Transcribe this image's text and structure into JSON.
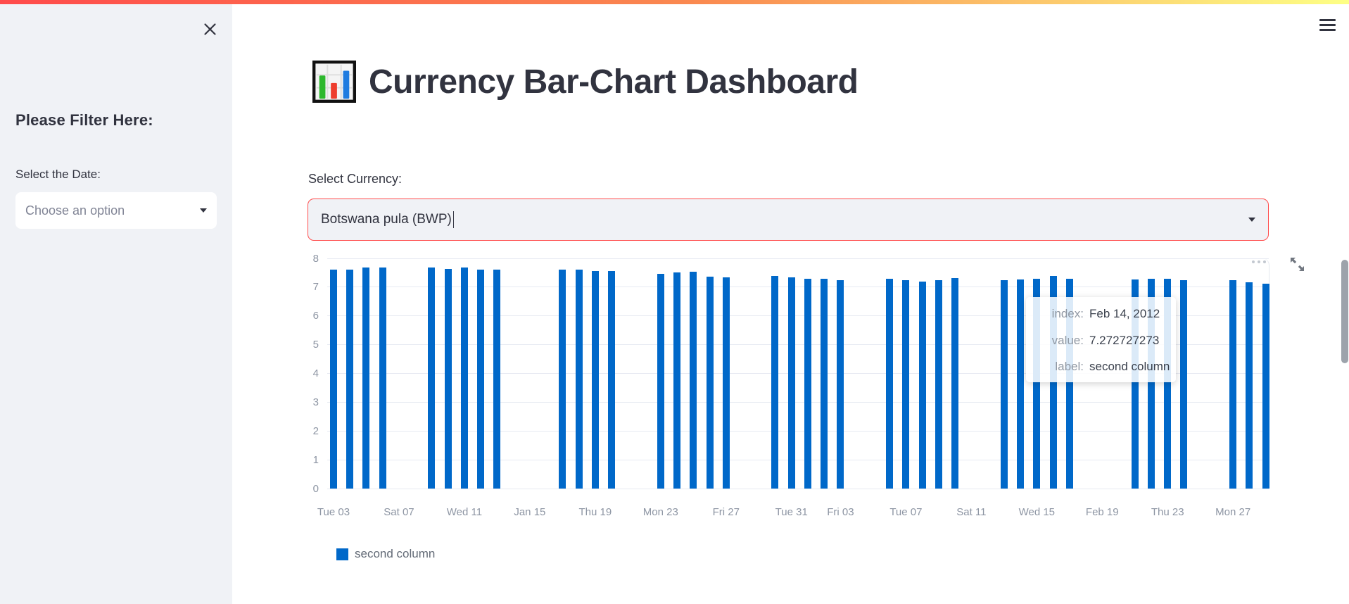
{
  "sidebar": {
    "heading": "Please Filter Here:",
    "date_label": "Select the Date:",
    "date_select_placeholder": "Choose an option"
  },
  "header": {
    "title": "Currency Bar-Chart Dashboard"
  },
  "main": {
    "currency_label": "Select Currency:",
    "currency_value": "Botswana pula (BWP)"
  },
  "tooltip": {
    "rows": [
      {
        "key": "index:",
        "value": "Feb 14, 2012"
      },
      {
        "key": "value:",
        "value": "7.272727273"
      },
      {
        "key": "label:",
        "value": "second column"
      }
    ]
  },
  "chart_data": {
    "type": "bar",
    "title": "",
    "xlabel": "",
    "ylabel": "",
    "series_name": "second column",
    "legend": [
      "second column"
    ],
    "legend_position": "bottom-left",
    "grid": true,
    "ylim": [
      0,
      8
    ],
    "y_ticks": [
      0,
      1,
      2,
      3,
      4,
      5,
      6,
      7,
      8
    ],
    "bar_color": "#0068c9",
    "x_ticks": [
      {
        "d": 0,
        "label": "Tue 03"
      },
      {
        "d": 4,
        "label": "Sat 07"
      },
      {
        "d": 8,
        "label": "Wed 11"
      },
      {
        "d": 12,
        "label": "Jan 15"
      },
      {
        "d": 16,
        "label": "Thu 19"
      },
      {
        "d": 20,
        "label": "Mon 23"
      },
      {
        "d": 24,
        "label": "Fri 27"
      },
      {
        "d": 28,
        "label": "Tue 31"
      },
      {
        "d": 31,
        "label": "Fri 03"
      },
      {
        "d": 35,
        "label": "Tue 07"
      },
      {
        "d": 39,
        "label": "Sat 11"
      },
      {
        "d": 43,
        "label": "Wed 15"
      },
      {
        "d": 47,
        "label": "Feb 19"
      },
      {
        "d": 51,
        "label": "Thu 23"
      },
      {
        "d": 55,
        "label": "Mon 27"
      }
    ],
    "bars": [
      {
        "date": "Jan 03, 2012",
        "d": 0,
        "value": 7.62
      },
      {
        "date": "Jan 04, 2012",
        "d": 1,
        "value": 7.62
      },
      {
        "date": "Jan 05, 2012",
        "d": 2,
        "value": 7.68
      },
      {
        "date": "Jan 06, 2012",
        "d": 3,
        "value": 7.68
      },
      {
        "date": "Jan 09, 2012",
        "d": 6,
        "value": 7.68
      },
      {
        "date": "Jan 10, 2012",
        "d": 7,
        "value": 7.63
      },
      {
        "date": "Jan 11, 2012",
        "d": 8,
        "value": 7.68
      },
      {
        "date": "Jan 12, 2012",
        "d": 9,
        "value": 7.6
      },
      {
        "date": "Jan 13, 2012",
        "d": 10,
        "value": 7.6
      },
      {
        "date": "Jan 17, 2012",
        "d": 14,
        "value": 7.6
      },
      {
        "date": "Jan 18, 2012",
        "d": 15,
        "value": 7.6
      },
      {
        "date": "Jan 19, 2012",
        "d": 16,
        "value": 7.55
      },
      {
        "date": "Jan 20, 2012",
        "d": 17,
        "value": 7.55
      },
      {
        "date": "Jan 23, 2012",
        "d": 20,
        "value": 7.45
      },
      {
        "date": "Jan 24, 2012",
        "d": 21,
        "value": 7.51
      },
      {
        "date": "Jan 25, 2012",
        "d": 22,
        "value": 7.53
      },
      {
        "date": "Jan 26, 2012",
        "d": 23,
        "value": 7.37
      },
      {
        "date": "Jan 27, 2012",
        "d": 24,
        "value": 7.33
      },
      {
        "date": "Jan 30, 2012",
        "d": 27,
        "value": 7.4
      },
      {
        "date": "Jan 31, 2012",
        "d": 28,
        "value": 7.34
      },
      {
        "date": "Feb 01, 2012",
        "d": 29,
        "value": 7.3
      },
      {
        "date": "Feb 02, 2012",
        "d": 30,
        "value": 7.3
      },
      {
        "date": "Feb 03, 2012",
        "d": 31,
        "value": 7.25
      },
      {
        "date": "Feb 06, 2012",
        "d": 34,
        "value": 7.28
      },
      {
        "date": "Feb 07, 2012",
        "d": 35,
        "value": 7.25
      },
      {
        "date": "Feb 08, 2012",
        "d": 36,
        "value": 7.2
      },
      {
        "date": "Feb 09, 2012",
        "d": 37,
        "value": 7.25
      },
      {
        "date": "Feb 10, 2012",
        "d": 38,
        "value": 7.32
      },
      {
        "date": "Feb 13, 2012",
        "d": 41,
        "value": 7.25
      },
      {
        "date": "Feb 14, 2012",
        "d": 42,
        "value": 7.272727273
      },
      {
        "date": "Feb 15, 2012",
        "d": 43,
        "value": 7.29
      },
      {
        "date": "Feb 16, 2012",
        "d": 44,
        "value": 7.38
      },
      {
        "date": "Feb 17, 2012",
        "d": 45,
        "value": 7.29
      },
      {
        "date": "Feb 21, 2012",
        "d": 49,
        "value": 7.27
      },
      {
        "date": "Feb 22, 2012",
        "d": 50,
        "value": 7.3
      },
      {
        "date": "Feb 23, 2012",
        "d": 51,
        "value": 7.3
      },
      {
        "date": "Feb 24, 2012",
        "d": 52,
        "value": 7.23
      },
      {
        "date": "Feb 27, 2012",
        "d": 55,
        "value": 7.23
      },
      {
        "date": "Feb 28, 2012",
        "d": 56,
        "value": 7.18
      },
      {
        "date": "Feb 29, 2012",
        "d": 57,
        "value": 7.13
      }
    ]
  }
}
